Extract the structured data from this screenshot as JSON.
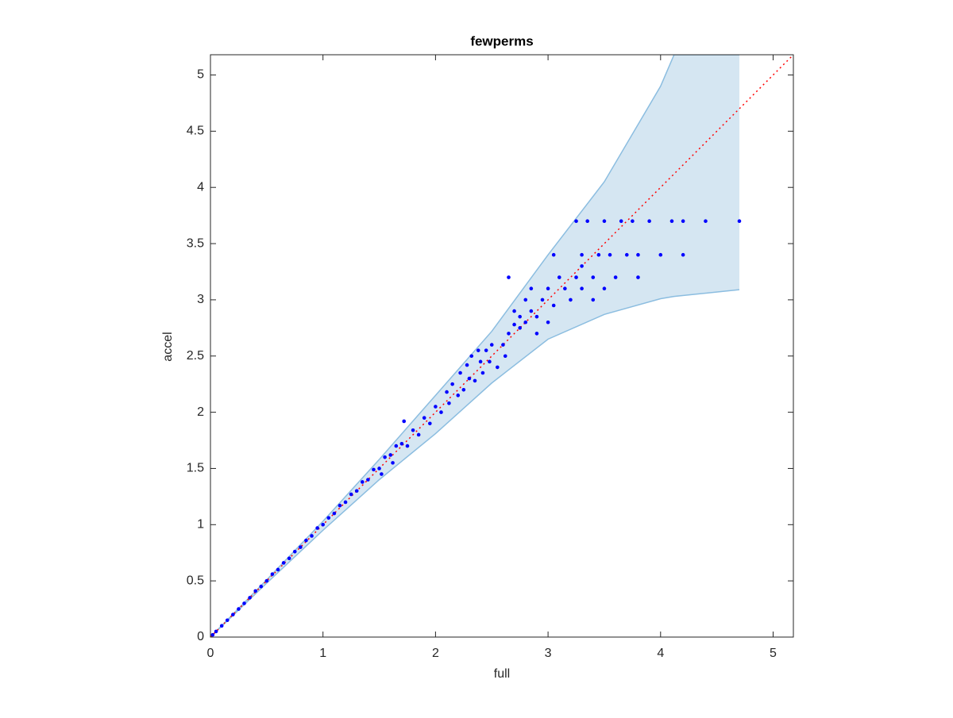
{
  "chart_data": {
    "type": "scatter",
    "title": "fewperms",
    "xlabel": "full",
    "ylabel": "accel",
    "xlim": [
      0,
      5.18
    ],
    "ylim": [
      0,
      5.18
    ],
    "xticks": [
      0,
      1,
      2,
      3,
      4,
      5
    ],
    "yticks": [
      0,
      0.5,
      1,
      1.5,
      2,
      2.5,
      3,
      3.5,
      4,
      4.5,
      5
    ],
    "band": {
      "color": "#d5e6f2",
      "edge_color": "#8bbde0",
      "x": [
        0,
        0.5,
        1,
        1.5,
        2,
        2.5,
        3,
        3.5,
        4,
        4.12,
        4.7
      ],
      "upper": [
        0,
        0.51,
        1.03,
        1.58,
        2.15,
        2.72,
        3.4,
        4.05,
        4.9,
        5.18,
        5.18
      ],
      "lower": [
        0,
        0.48,
        0.95,
        1.4,
        1.81,
        2.26,
        2.65,
        2.87,
        3.01,
        3.03,
        3.09
      ]
    },
    "reference": {
      "color": "#ff0000",
      "style": "dotted",
      "x": [
        0,
        5.18
      ],
      "y": [
        0,
        5.18
      ]
    },
    "points": {
      "color": "#0000ff",
      "x": [
        0.02,
        0.05,
        0.1,
        0.15,
        0.2,
        0.25,
        0.3,
        0.35,
        0.4,
        0.45,
        0.5,
        0.55,
        0.6,
        0.65,
        0.7,
        0.75,
        0.8,
        0.85,
        0.9,
        0.95,
        1.0,
        1.05,
        1.1,
        1.15,
        1.2,
        1.25,
        1.3,
        1.35,
        1.4,
        1.45,
        1.5,
        1.52,
        1.55,
        1.6,
        1.62,
        1.65,
        1.7,
        1.72,
        1.75,
        1.8,
        1.85,
        1.9,
        1.95,
        2.0,
        2.05,
        2.1,
        2.12,
        2.15,
        2.2,
        2.22,
        2.25,
        2.28,
        2.3,
        2.32,
        2.35,
        2.38,
        2.4,
        2.42,
        2.45,
        2.48,
        2.5,
        2.55,
        2.6,
        2.62,
        2.65,
        2.7,
        2.7,
        2.75,
        2.75,
        2.8,
        2.85,
        2.9,
        2.95,
        2.85,
        3.0,
        3.05,
        3.05,
        3.1,
        3.15,
        3.2,
        3.25,
        3.25,
        3.3,
        3.3,
        3.35,
        3.4,
        3.45,
        3.5,
        3.5,
        3.55,
        3.6,
        3.65,
        3.7,
        3.75,
        3.8,
        3.8,
        3.9,
        4.0,
        4.1,
        4.2,
        4.2,
        4.4,
        4.7,
        2.65,
        2.8,
        2.9,
        3.0,
        3.4,
        3.3
      ],
      "y": [
        0.02,
        0.05,
        0.1,
        0.15,
        0.2,
        0.25,
        0.3,
        0.35,
        0.41,
        0.45,
        0.5,
        0.56,
        0.6,
        0.66,
        0.7,
        0.76,
        0.8,
        0.86,
        0.9,
        0.97,
        1.0,
        1.06,
        1.1,
        1.17,
        1.2,
        1.27,
        1.3,
        1.38,
        1.4,
        1.49,
        1.5,
        1.45,
        1.6,
        1.62,
        1.55,
        1.7,
        1.72,
        1.92,
        1.7,
        1.84,
        1.8,
        1.95,
        1.9,
        2.05,
        2.0,
        2.18,
        2.08,
        2.25,
        2.15,
        2.35,
        2.2,
        2.42,
        2.3,
        2.5,
        2.28,
        2.55,
        2.45,
        2.35,
        2.55,
        2.45,
        2.6,
        2.4,
        2.6,
        2.5,
        2.7,
        2.78,
        2.9,
        2.75,
        2.85,
        2.8,
        2.9,
        2.85,
        3.0,
        3.1,
        3.1,
        2.95,
        3.4,
        3.2,
        3.1,
        3.0,
        3.7,
        3.2,
        3.1,
        3.4,
        3.7,
        3.2,
        3.4,
        3.1,
        3.7,
        3.4,
        3.2,
        3.7,
        3.4,
        3.7,
        3.4,
        3.2,
        3.7,
        3.4,
        3.7,
        3.4,
        3.7,
        3.7,
        3.7,
        3.2,
        3.0,
        2.7,
        2.8,
        3.0,
        3.3
      ]
    }
  }
}
